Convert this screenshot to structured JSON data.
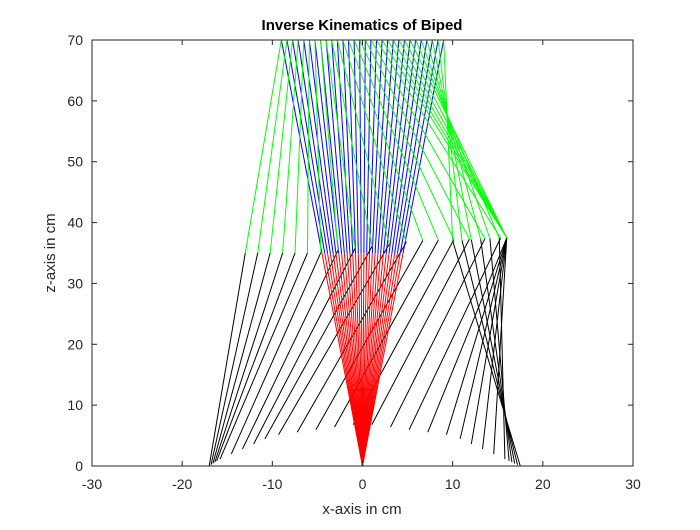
{
  "chart_data": {
    "type": "line",
    "title": "Inverse Kinematics of Biped",
    "xlabel": "x-axis in cm",
    "ylabel": "z-axis in cm",
    "xlim": [
      -30,
      30
    ],
    "ylim": [
      0,
      70
    ],
    "xticks": [
      -30,
      -20,
      -10,
      0,
      10,
      20,
      30
    ],
    "yticks": [
      0,
      10,
      20,
      30,
      40,
      50,
      60,
      70
    ],
    "grid": false,
    "legend": "none",
    "colors": {
      "stance_thigh": "#0000ff",
      "stance_shank": "#ff0000",
      "swing_thigh": "#00ff00",
      "swing_shank": "#000000",
      "axes": "#262626"
    },
    "frames": 30,
    "stance_foot": [
      0,
      0
    ],
    "stance_knee_x_range": [
      -4.5,
      4.5
    ],
    "knee_height": 35,
    "hip_x_range": [
      -9,
      9
    ],
    "hip_height": 70,
    "swing_knee_path": [
      [
        -13,
        35
      ],
      [
        -5,
        35
      ],
      [
        6,
        37
      ],
      [
        16,
        37.5
      ],
      [
        16,
        37.5
      ],
      [
        10,
        37
      ]
    ],
    "swing_foot_path": [
      [
        -17,
        0
      ],
      [
        -16,
        1
      ],
      [
        -10,
        5
      ],
      [
        0,
        7
      ],
      [
        10,
        5
      ],
      [
        16,
        1
      ],
      [
        17.5,
        0
      ]
    ]
  }
}
